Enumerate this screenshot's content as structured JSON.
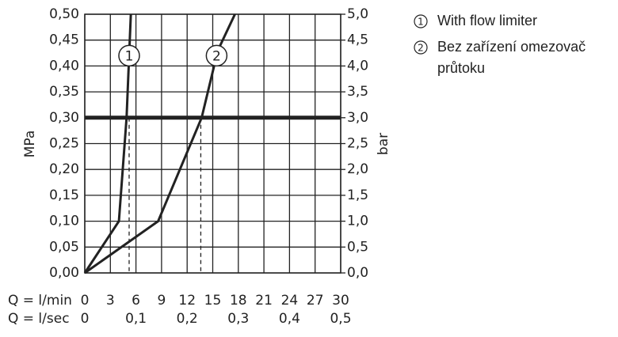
{
  "chart_data": {
    "type": "line",
    "xlabel": "Q = l/min",
    "x2label": "Q = l/sec",
    "ylabel": "MPa",
    "y2label": "bar",
    "xlim": [
      0,
      30
    ],
    "xticks": [
      0,
      3,
      6,
      9,
      12,
      15,
      18,
      21,
      24,
      27,
      30
    ],
    "x2lim": [
      0,
      0.5
    ],
    "x2ticks": [
      0,
      {
        "value": 0.1,
        "label": "0,1"
      },
      {
        "value": 0.2,
        "label": "0,2"
      },
      {
        "value": 0.3,
        "label": "0,3"
      },
      {
        "value": 0.4,
        "label": "0,4"
      },
      {
        "value": 0.5,
        "label": "0,5"
      }
    ],
    "ylim": [
      0,
      0.5
    ],
    "yticks": [
      {
        "value": 0,
        "label": "0,00"
      },
      {
        "value": 0.05,
        "label": "0,05"
      },
      {
        "value": 0.1,
        "label": "0,10"
      },
      {
        "value": 0.15,
        "label": "0,15"
      },
      {
        "value": 0.2,
        "label": "0,20"
      },
      {
        "value": 0.25,
        "label": "0,25"
      },
      {
        "value": 0.3,
        "label": "0,30"
      },
      {
        "value": 0.35,
        "label": "0,35"
      },
      {
        "value": 0.4,
        "label": "0,40"
      },
      {
        "value": 0.45,
        "label": "0,45"
      },
      {
        "value": 0.5,
        "label": "0,50"
      }
    ],
    "y2lim": [
      0,
      5
    ],
    "y2ticks": [
      {
        "value": 0,
        "label": "0,0"
      },
      {
        "value": 0.5,
        "label": "0,5"
      },
      {
        "value": 1,
        "label": "1,0"
      },
      {
        "value": 1.5,
        "label": "1,5"
      },
      {
        "value": 2,
        "label": "2,0"
      },
      {
        "value": 2.5,
        "label": "2,5"
      },
      {
        "value": 3,
        "label": "3,0"
      },
      {
        "value": 3.5,
        "label": "3,5"
      },
      {
        "value": 4,
        "label": "4,0"
      },
      {
        "value": 4.5,
        "label": "4,5"
      },
      {
        "value": 5,
        "label": "5,0"
      }
    ],
    "grid": true,
    "reference_y": 0.3,
    "reference_x": [
      5.2,
      13.6
    ],
    "series": [
      {
        "name": "With flow limiter",
        "marker_label": "1",
        "color": "#222222",
        "x": [
          0,
          4.0,
          4.9,
          5.4
        ],
        "values": [
          0,
          0.1,
          0.3,
          0.5
        ]
      },
      {
        "name": "Bez zařízení omezovač průtoku",
        "marker_label": "2",
        "color": "#222222",
        "x": [
          0,
          8.6,
          13.7,
          15.6,
          17.6
        ],
        "values": [
          0,
          0.1,
          0.3,
          0.43,
          0.5
        ]
      }
    ]
  }
}
